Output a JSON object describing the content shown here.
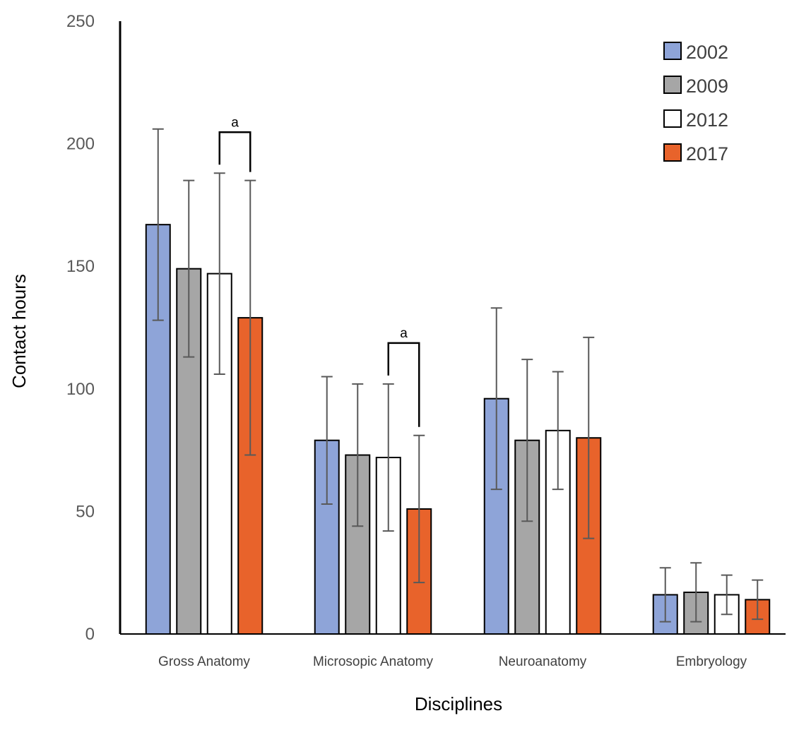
{
  "chart_data": {
    "type": "bar",
    "title": "",
    "xlabel": "Disciplines",
    "ylabel": "Contact hours",
    "ylim": [
      0,
      250
    ],
    "yticks": [
      0,
      50,
      100,
      150,
      200,
      250
    ],
    "grid": false,
    "legend_position": "top-right",
    "categories": [
      "Gross Anatomy",
      "Microsopic Anatomy",
      "Neuroanatomy",
      "Embryology"
    ],
    "series": [
      {
        "name": "2002",
        "color": "#8EA4D8",
        "values": [
          167,
          79,
          96,
          16
        ],
        "error": [
          39,
          26,
          37,
          11
        ]
      },
      {
        "name": "2009",
        "color": "#A6A6A6",
        "values": [
          149,
          73,
          79,
          17
        ],
        "error": [
          36,
          29,
          33,
          12
        ]
      },
      {
        "name": "2012",
        "color": "#FFFFFF",
        "values": [
          147,
          72,
          83,
          16
        ],
        "error": [
          41,
          30,
          24,
          8
        ]
      },
      {
        "name": "2017",
        "color": "#E8632B",
        "values": [
          129,
          51,
          80,
          14
        ],
        "error": [
          56,
          30,
          41,
          8
        ]
      }
    ],
    "annotations": [
      {
        "text": "a",
        "category_index": 0,
        "from_series": 2,
        "to_series": 3
      },
      {
        "text": "a",
        "category_index": 1,
        "from_series": 2,
        "to_series": 3
      }
    ]
  }
}
